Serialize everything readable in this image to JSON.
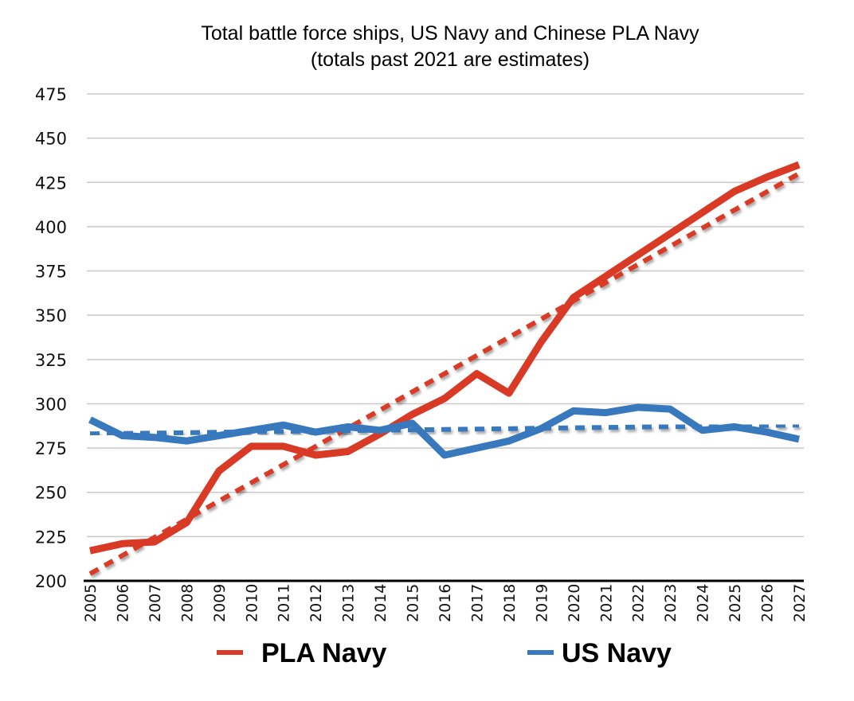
{
  "chart_data": {
    "type": "line",
    "title": "Total battle force ships, US Navy and Chinese PLA Navy",
    "subtitle": "(totals past 2021 are estimates)",
    "xlabel": "",
    "ylabel": "",
    "ylim": [
      200,
      475
    ],
    "yticks": [
      200,
      225,
      250,
      275,
      300,
      325,
      350,
      375,
      400,
      425,
      450,
      475
    ],
    "x": [
      2005,
      2006,
      2007,
      2008,
      2009,
      2010,
      2011,
      2012,
      2013,
      2014,
      2015,
      2016,
      2017,
      2018,
      2019,
      2020,
      2021,
      2022,
      2023,
      2024,
      2025,
      2026,
      2027
    ],
    "grid": true,
    "legend_position": "bottom",
    "series": [
      {
        "name": "PLA Navy",
        "color": "#d93a26",
        "values": [
          217,
          221,
          222,
          233,
          262,
          276,
          276,
          271,
          273,
          283,
          294,
          303,
          317,
          306,
          335,
          360,
          372,
          384,
          396,
          408,
          420,
          428,
          435
        ],
        "trendline": {
          "type": "linear",
          "start": 204,
          "end": 430,
          "style": "dashed"
        }
      },
      {
        "name": "US Navy",
        "color": "#3878bd",
        "values": [
          291,
          282,
          281,
          279,
          282,
          285,
          288,
          284,
          287,
          285,
          289,
          271,
          275,
          279,
          286,
          296,
          295,
          298,
          297,
          285,
          287,
          284,
          280
        ],
        "trendline": {
          "type": "linear",
          "start": 283,
          "end": 288,
          "style": "dashed"
        }
      }
    ]
  }
}
